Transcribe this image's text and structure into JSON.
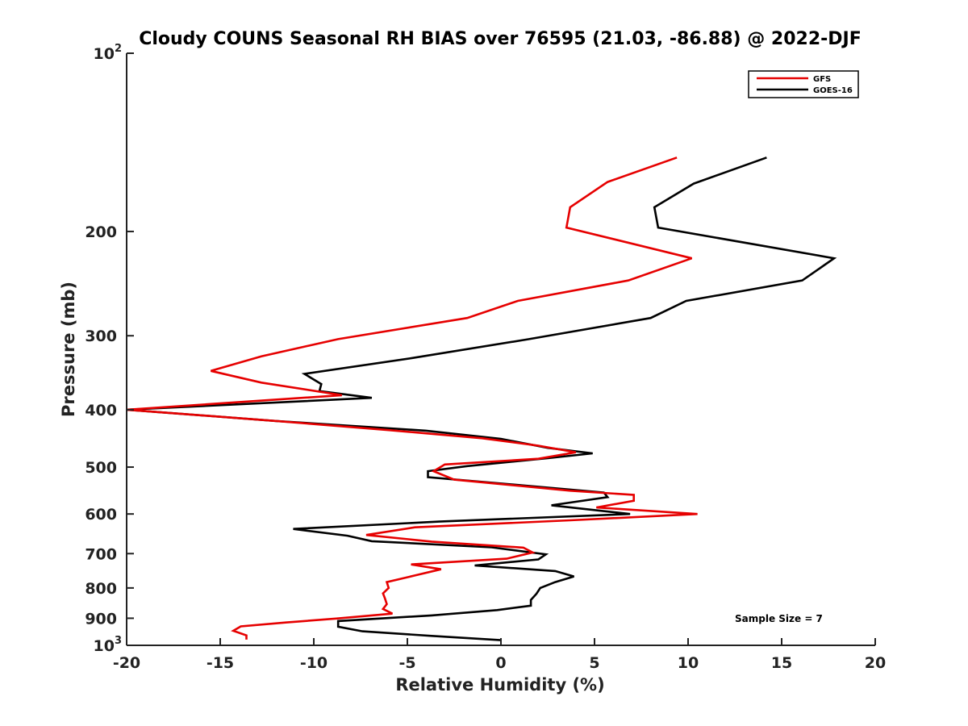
{
  "chart_data": {
    "type": "line",
    "title": "Cloudy COUNS Seasonal RH BIAS over 76595 (21.03, -86.88) @ 2022-DJF",
    "xlabel": "Relative Humidity (%)",
    "ylabel": "Pressure (mb)",
    "xlim": [
      -20,
      20
    ],
    "ylim": [
      100,
      1000
    ],
    "yscale": "log",
    "yreversed": true,
    "x_ticks": [
      "-20",
      "-15",
      "-10",
      "-5",
      "0",
      "5",
      "10",
      "15",
      "20"
    ],
    "y_ticks": [
      {
        "value": 100,
        "label": "10",
        "sup": "2"
      },
      {
        "value": 200,
        "label": "200",
        "sup": ""
      },
      {
        "value": 300,
        "label": "300",
        "sup": ""
      },
      {
        "value": 400,
        "label": "400",
        "sup": ""
      },
      {
        "value": 500,
        "label": "500",
        "sup": ""
      },
      {
        "value": 600,
        "label": "600",
        "sup": ""
      },
      {
        "value": 700,
        "label": "700",
        "sup": ""
      },
      {
        "value": 800,
        "label": "800",
        "sup": ""
      },
      {
        "value": 900,
        "label": "900",
        "sup": ""
      },
      {
        "value": 1000,
        "label": "10",
        "sup": "3"
      }
    ],
    "legend_position": "top-right",
    "series": [
      {
        "name": "GFS",
        "color": "#e60000",
        "points": [
          [
            9.4,
            150
          ],
          [
            5.7,
            165
          ],
          [
            3.7,
            182
          ],
          [
            3.5,
            197
          ],
          [
            10.2,
            222
          ],
          [
            6.8,
            242
          ],
          [
            0.9,
            262
          ],
          [
            -1.8,
            280
          ],
          [
            -8.7,
            304
          ],
          [
            -12.8,
            325
          ],
          [
            -15.5,
            344
          ],
          [
            -12.8,
            360
          ],
          [
            -8.5,
            378
          ],
          [
            -20,
            400
          ],
          [
            -12,
            418
          ],
          [
            -6,
            433
          ],
          [
            -1,
            447
          ],
          [
            2,
            460
          ],
          [
            4,
            472
          ],
          [
            2,
            484
          ],
          [
            -3,
            495
          ],
          [
            -3.6,
            508
          ],
          [
            -2.5,
            525
          ],
          [
            3.7,
            548
          ],
          [
            7.1,
            557
          ],
          [
            7.1,
            570
          ],
          [
            5.1,
            585
          ],
          [
            10.5,
            600
          ],
          [
            3.7,
            615
          ],
          [
            -4.6,
            632
          ],
          [
            -7.2,
            651
          ],
          [
            -3.7,
            668
          ],
          [
            1.2,
            684
          ],
          [
            1.7,
            697
          ],
          [
            0.3,
            714
          ],
          [
            -4.8,
            730
          ],
          [
            -3.2,
            744
          ],
          [
            -4.6,
            762
          ],
          [
            -6.1,
            782
          ],
          [
            -6.0,
            800
          ],
          [
            -6.3,
            817
          ],
          [
            -6.2,
            833
          ],
          [
            -6.1,
            852
          ],
          [
            -6.3,
            868
          ],
          [
            -5.8,
            884
          ],
          [
            -8.8,
            901
          ],
          [
            -11.5,
            915
          ],
          [
            -13.9,
            929
          ],
          [
            -14.3,
            945
          ],
          [
            -13.6,
            962
          ],
          [
            -13.6,
            978
          ]
        ]
      },
      {
        "name": "GOES-16",
        "color": "#000000",
        "points": [
          [
            14.2,
            150
          ],
          [
            10.3,
            166
          ],
          [
            8.2,
            182
          ],
          [
            8.4,
            197
          ],
          [
            17.8,
            222
          ],
          [
            16.1,
            242
          ],
          [
            9.9,
            262
          ],
          [
            8.0,
            280
          ],
          [
            1.5,
            304
          ],
          [
            -4.7,
            327
          ],
          [
            -10.5,
            348
          ],
          [
            -9.6,
            362
          ],
          [
            -9.7,
            372
          ],
          [
            -6.9,
            382
          ],
          [
            -20,
            400
          ],
          [
            -12,
            418
          ],
          [
            -4,
            434
          ],
          [
            0,
            448
          ],
          [
            2.5,
            464
          ],
          [
            4.9,
            474
          ],
          [
            2.5,
            483
          ],
          [
            -1.8,
            498
          ],
          [
            -3.9,
            508
          ],
          [
            -3.9,
            520
          ],
          [
            1.5,
            538
          ],
          [
            5.5,
            552
          ],
          [
            5.7,
            562
          ],
          [
            2.7,
            580
          ],
          [
            6.9,
            600
          ],
          [
            -3.3,
            618
          ],
          [
            -11.1,
            636
          ],
          [
            -8.2,
            653
          ],
          [
            -6.9,
            667
          ],
          [
            -0.5,
            683
          ],
          [
            2.4,
            702
          ],
          [
            2.0,
            716
          ],
          [
            -1.4,
            733
          ],
          [
            2.9,
            749
          ],
          [
            3.9,
            765
          ],
          [
            2.9,
            782
          ],
          [
            2.1,
            800
          ],
          [
            1.9,
            818
          ],
          [
            1.6,
            838
          ],
          [
            1.6,
            857
          ],
          [
            -0.2,
            872
          ],
          [
            -3.7,
            890
          ],
          [
            -8.7,
            910
          ],
          [
            -8.7,
            930
          ],
          [
            -7.4,
            947
          ],
          [
            -3.7,
            964
          ],
          [
            0,
            980
          ]
        ]
      }
    ],
    "annotation": "Sample Size = 7"
  }
}
